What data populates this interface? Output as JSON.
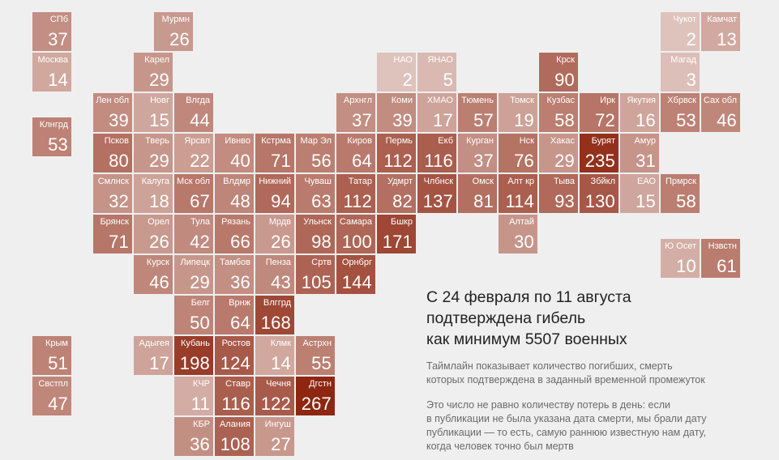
{
  "headline": [
    "С 24 февраля по 11 августа",
    "подтверждена гибель",
    "как минимум 5507 военных"
  ],
  "description": [
    "Таймлайн показывает количество погибших, смерть",
    "которых подтверждена в заданный временной промежуток"
  ],
  "note": [
    "Это число не равно количеству потерь в день: если",
    "в публикации не была указана дата смерти, мы брали дату",
    "публикации — то есть, самую раннюю известную нам дату,",
    "когда человек точно был мертв"
  ],
  "colors": {
    "scale_low": "#e8d6d1",
    "scale_high": "#8e2712",
    "background": "#efefef",
    "headline": "#222222",
    "body_text": "#6b6b6b"
  },
  "map": {
    "scale_max": 267,
    "regions": [
      {
        "name": "СПб",
        "value": 37,
        "col": 0,
        "row": 0
      },
      {
        "name": "Москва",
        "value": 14,
        "col": 0,
        "row": 1
      },
      {
        "name": "Клнгрд",
        "value": 53,
        "col": 0,
        "row": 2.6
      },
      {
        "name": "Мурмн",
        "value": 26,
        "col": 3,
        "row": 0
      },
      {
        "name": "Карел",
        "value": 29,
        "col": 2.5,
        "row": 1
      },
      {
        "name": "Лен обл",
        "value": 39,
        "col": 1.5,
        "row": 2
      },
      {
        "name": "Новг",
        "value": 15,
        "col": 2.5,
        "row": 2
      },
      {
        "name": "Влгда",
        "value": 44,
        "col": 3.5,
        "row": 2
      },
      {
        "name": "Псков",
        "value": 80,
        "col": 1.5,
        "row": 3
      },
      {
        "name": "Тверь",
        "value": 29,
        "col": 2.5,
        "row": 3
      },
      {
        "name": "Ярсвл",
        "value": 22,
        "col": 3.5,
        "row": 3
      },
      {
        "name": "Ивнво",
        "value": 40,
        "col": 4.5,
        "row": 3
      },
      {
        "name": "Кстрма",
        "value": 71,
        "col": 5.5,
        "row": 3
      },
      {
        "name": "Мар Эл",
        "value": 56,
        "col": 6.5,
        "row": 3
      },
      {
        "name": "Киров",
        "value": 64,
        "col": 7.5,
        "row": 3
      },
      {
        "name": "Смлнск",
        "value": 32,
        "col": 1.5,
        "row": 4
      },
      {
        "name": "Калуга",
        "value": 18,
        "col": 2.5,
        "row": 4
      },
      {
        "name": "Мск обл",
        "value": 67,
        "col": 3.5,
        "row": 4
      },
      {
        "name": "Влдмр",
        "value": 48,
        "col": 4.5,
        "row": 4
      },
      {
        "name": "Нижний",
        "value": 94,
        "col": 5.5,
        "row": 4
      },
      {
        "name": "Чуваш",
        "value": 63,
        "col": 6.5,
        "row": 4
      },
      {
        "name": "Брянск",
        "value": 71,
        "col": 1.5,
        "row": 5
      },
      {
        "name": "Орел",
        "value": 26,
        "col": 2.5,
        "row": 5
      },
      {
        "name": "Тула",
        "value": 42,
        "col": 3.5,
        "row": 5
      },
      {
        "name": "Рязань",
        "value": 66,
        "col": 4.5,
        "row": 5
      },
      {
        "name": "Мрдв",
        "value": 26,
        "col": 5.5,
        "row": 5
      },
      {
        "name": "Ульнск",
        "value": 98,
        "col": 6.5,
        "row": 5
      },
      {
        "name": "Самара",
        "value": 100,
        "col": 7.5,
        "row": 5
      },
      {
        "name": "Бшкр",
        "value": 171,
        "col": 8.5,
        "row": 5
      },
      {
        "name": "Курск",
        "value": 46,
        "col": 2.5,
        "row": 6
      },
      {
        "name": "Липецк",
        "value": 29,
        "col": 3.5,
        "row": 6
      },
      {
        "name": "Тамбов",
        "value": 36,
        "col": 4.5,
        "row": 6
      },
      {
        "name": "Пенза",
        "value": 43,
        "col": 5.5,
        "row": 6
      },
      {
        "name": "Сртв",
        "value": 105,
        "col": 6.5,
        "row": 6
      },
      {
        "name": "Орнбрг",
        "value": 144,
        "col": 7.5,
        "row": 6
      },
      {
        "name": "Белг",
        "value": 50,
        "col": 3.5,
        "row": 7
      },
      {
        "name": "Врнж",
        "value": 64,
        "col": 4.5,
        "row": 7
      },
      {
        "name": "Влггрд",
        "value": 168,
        "col": 5.5,
        "row": 7
      },
      {
        "name": "Крым",
        "value": 51,
        "col": 0,
        "row": 8
      },
      {
        "name": "Адыгея",
        "value": 17,
        "col": 2.5,
        "row": 8
      },
      {
        "name": "Кубань",
        "value": 198,
        "col": 3.5,
        "row": 8
      },
      {
        "name": "Ростов",
        "value": 124,
        "col": 4.5,
        "row": 8
      },
      {
        "name": "Клмк",
        "value": 14,
        "col": 5.5,
        "row": 8
      },
      {
        "name": "Астрхн",
        "value": 55,
        "col": 6.5,
        "row": 8
      },
      {
        "name": "Свстпл",
        "value": 47,
        "col": 0,
        "row": 9
      },
      {
        "name": "КЧР",
        "value": 11,
        "col": 3.5,
        "row": 9
      },
      {
        "name": "Ставр",
        "value": 116,
        "col": 4.5,
        "row": 9
      },
      {
        "name": "Чечня",
        "value": 122,
        "col": 5.5,
        "row": 9
      },
      {
        "name": "Дгстн",
        "value": 267,
        "col": 6.5,
        "row": 9
      },
      {
        "name": "КБР",
        "value": 36,
        "col": 3.5,
        "row": 10
      },
      {
        "name": "Алания",
        "value": 108,
        "col": 4.5,
        "row": 10
      },
      {
        "name": "Ингуш",
        "value": 27,
        "col": 5.5,
        "row": 10
      },
      {
        "name": "НАО",
        "value": 2,
        "col": 8.5,
        "row": 1
      },
      {
        "name": "ЯНАО",
        "value": 5,
        "col": 9.5,
        "row": 1
      },
      {
        "name": "Крск",
        "value": 90,
        "col": 12.5,
        "row": 1
      },
      {
        "name": "Архнгл",
        "value": 37,
        "col": 7.5,
        "row": 2
      },
      {
        "name": "Коми",
        "value": 39,
        "col": 8.5,
        "row": 2
      },
      {
        "name": "ХМАО",
        "value": 17,
        "col": 9.5,
        "row": 2
      },
      {
        "name": "Тюмень",
        "value": 57,
        "col": 10.5,
        "row": 2
      },
      {
        "name": "Томск",
        "value": 19,
        "col": 11.5,
        "row": 2
      },
      {
        "name": "Кузбас",
        "value": 58,
        "col": 12.5,
        "row": 2
      },
      {
        "name": "Ирк",
        "value": 72,
        "col": 13.5,
        "row": 2
      },
      {
        "name": "Якутия",
        "value": 16,
        "col": 14.5,
        "row": 2
      },
      {
        "name": "Хбрвск",
        "value": 53,
        "col": 15.5,
        "row": 2
      },
      {
        "name": "Сах обл",
        "value": 46,
        "col": 16.5,
        "row": 2
      },
      {
        "name": "Пермь",
        "value": 112,
        "col": 8.5,
        "row": 3
      },
      {
        "name": "Екб",
        "value": 116,
        "col": 9.5,
        "row": 3
      },
      {
        "name": "Курган",
        "value": 37,
        "col": 10.5,
        "row": 3
      },
      {
        "name": "Нск",
        "value": 76,
        "col": 11.5,
        "row": 3
      },
      {
        "name": "Хакас",
        "value": 29,
        "col": 12.5,
        "row": 3
      },
      {
        "name": "Бурят",
        "value": 235,
        "col": 13.5,
        "row": 3
      },
      {
        "name": "Амур",
        "value": 31,
        "col": 14.5,
        "row": 3
      },
      {
        "name": "Татар",
        "value": 112,
        "col": 7.5,
        "row": 4
      },
      {
        "name": "Удмрт",
        "value": 82,
        "col": 8.5,
        "row": 4
      },
      {
        "name": "Члбнск",
        "value": 137,
        "col": 9.5,
        "row": 4
      },
      {
        "name": "Омск",
        "value": 81,
        "col": 10.5,
        "row": 4
      },
      {
        "name": "Алт кр",
        "value": 114,
        "col": 11.5,
        "row": 4
      },
      {
        "name": "Тыва",
        "value": 93,
        "col": 12.5,
        "row": 4
      },
      {
        "name": "Збйкл",
        "value": 130,
        "col": 13.5,
        "row": 4
      },
      {
        "name": "ЕАО",
        "value": 15,
        "col": 14.5,
        "row": 4
      },
      {
        "name": "Прмрск",
        "value": 58,
        "col": 15.5,
        "row": 4
      },
      {
        "name": "Алтай",
        "value": 30,
        "col": 11.5,
        "row": 5
      },
      {
        "name": "Чукот",
        "value": 2,
        "col": 15.5,
        "row": 0
      },
      {
        "name": "Камчат",
        "value": 13,
        "col": 16.5,
        "row": 0
      },
      {
        "name": "Магад",
        "value": 3,
        "col": 15.5,
        "row": 1
      },
      {
        "name": "Ю Осет",
        "value": 10,
        "col": 15.5,
        "row": 5.6
      },
      {
        "name": "Нзвстн",
        "value": 61,
        "col": 16.5,
        "row": 5.6
      }
    ]
  }
}
